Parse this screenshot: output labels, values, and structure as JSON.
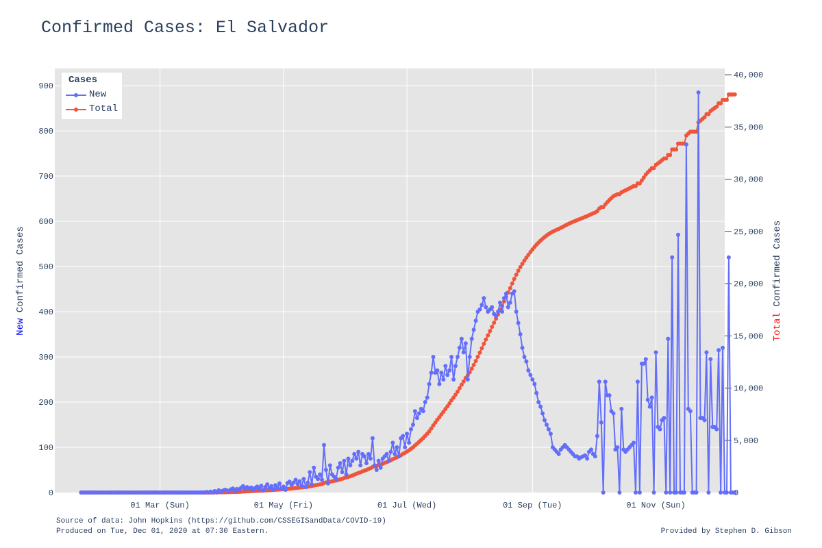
{
  "title": "Confirmed Cases: El Salvador",
  "footer": {
    "source": "Source of data: John Hopkins (https://github.com/CSSEGISandData/COVID-19)",
    "produced": "Produced on Tue, Dec 01, 2020 at 07:30 Eastern.",
    "credit": "Provided by Stephen D. Gibson"
  },
  "colors": {
    "new": "#636efa",
    "total": "#ef553b",
    "plot_bg": "#e5e5e5",
    "grid": "#ffffff",
    "text": "#2a3f5f",
    "new_label": "#0000ff",
    "total_label": "#ff0000"
  },
  "chart_data": {
    "type": "line",
    "title": "Confirmed Cases: El Salvador",
    "legend": {
      "title": "Cases",
      "position": "top-left"
    },
    "x_range": [
      "2020-01-09",
      "2020-12-05"
    ],
    "x_ticks": [
      {
        "date": "2020-03-01",
        "label": "01 Mar (Sun)"
      },
      {
        "date": "2020-05-01",
        "label": "01 May (Fri)"
      },
      {
        "date": "2020-07-01",
        "label": "01 Jul (Wed)"
      },
      {
        "date": "2020-09-01",
        "label": "01 Sep (Tue)"
      },
      {
        "date": "2020-11-01",
        "label": "01 Nov (Sun)"
      }
    ],
    "y_left": {
      "label_prefix": "New",
      "label_rest": " Confirmed Cases",
      "range": [
        0,
        938
      ],
      "ticks": [
        0,
        100,
        200,
        300,
        400,
        500,
        600,
        700,
        800,
        900
      ],
      "tick_labels": [
        "0",
        "100",
        "200",
        "300",
        "400",
        "500",
        "600",
        "700",
        "800",
        "900"
      ]
    },
    "y_right": {
      "label_prefix": "Total",
      "label_rest": " Confirmed Cases",
      "range": [
        0,
        40600
      ],
      "ticks": [
        0,
        5000,
        10000,
        15000,
        20000,
        25000,
        30000,
        35000,
        40000
      ],
      "tick_labels": [
        "0",
        "5,000",
        "10,000",
        "15,000",
        "20,000",
        "25,000",
        "30,000",
        "35,000",
        "40,000"
      ]
    },
    "grid": true,
    "start_date": "2020-01-22",
    "series": [
      {
        "name": "New",
        "axis": "left",
        "values": [
          0,
          0,
          0,
          0,
          0,
          0,
          0,
          0,
          0,
          0,
          0,
          0,
          0,
          0,
          0,
          0,
          0,
          0,
          0,
          0,
          0,
          0,
          0,
          0,
          0,
          0,
          0,
          0,
          0,
          0,
          0,
          0,
          0,
          0,
          0,
          0,
          0,
          0,
          0,
          0,
          0,
          0,
          0,
          0,
          0,
          0,
          0,
          0,
          0,
          0,
          0,
          0,
          0,
          0,
          0,
          0,
          0,
          0,
          0,
          0,
          0,
          0,
          1,
          0,
          2,
          0,
          3,
          0,
          5,
          2,
          4,
          6,
          5,
          3,
          7,
          9,
          4,
          8,
          6,
          10,
          14,
          8,
          12,
          9,
          11,
          6,
          10,
          13,
          8,
          15,
          5,
          12,
          18,
          9,
          14,
          7,
          16,
          11,
          20,
          8,
          13,
          6,
          21,
          24,
          17,
          22,
          28,
          19,
          25,
          15,
          30,
          12,
          22,
          45,
          18,
          55,
          35,
          30,
          40,
          28,
          105,
          50,
          20,
          60,
          40,
          35,
          30,
          55,
          65,
          45,
          70,
          40,
          75,
          60,
          70,
          85,
          75,
          90,
          60,
          85,
          80,
          65,
          85,
          75,
          120,
          60,
          50,
          70,
          55,
          75,
          80,
          85,
          70,
          90,
          110,
          85,
          100,
          80,
          120,
          125,
          100,
          130,
          110,
          140,
          150,
          180,
          165,
          175,
          185,
          180,
          200,
          210,
          240,
          265,
          300,
          265,
          270,
          240,
          265,
          250,
          280,
          260,
          270,
          300,
          250,
          280,
          300,
          320,
          340,
          310,
          330,
          250,
          300,
          340,
          360,
          380,
          400,
          405,
          415,
          430,
          410,
          400,
          405,
          410,
          395,
          390,
          400,
          420,
          400,
          430,
          440,
          410,
          420,
          440,
          445,
          400,
          375,
          350,
          320,
          300,
          290,
          270,
          260,
          250,
          240,
          220,
          200,
          190,
          175,
          160,
          150,
          140,
          130,
          100,
          95,
          90,
          85,
          95,
          100,
          105,
          100,
          95,
          90,
          85,
          80,
          80,
          75,
          78,
          80,
          82,
          75,
          90,
          95,
          85,
          80,
          125,
          245,
          155,
          0,
          245,
          215,
          215,
          180,
          175,
          95,
          100,
          0,
          185,
          95,
          90,
          95,
          100,
          105,
          110,
          0,
          245,
          0,
          285,
          285,
          295,
          205,
          190,
          210,
          0,
          310,
          145,
          140,
          160,
          165,
          0,
          340,
          0,
          520,
          0,
          0,
          570,
          0,
          0,
          0,
          770,
          185,
          180,
          0,
          0,
          0,
          885,
          165,
          165,
          160,
          310,
          0,
          295,
          145,
          145,
          140,
          315,
          0,
          320,
          0,
          0,
          520,
          0,
          0,
          0
        ]
      },
      {
        "name": "Total",
        "axis": "right",
        "values": []
      }
    ]
  }
}
